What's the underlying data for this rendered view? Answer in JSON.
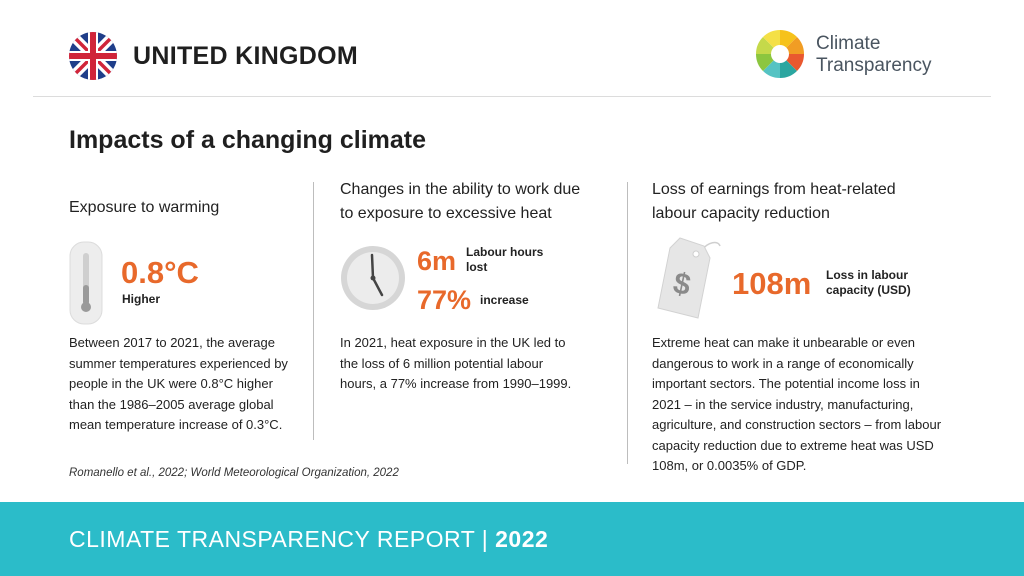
{
  "header": {
    "country": "UNITED KINGDOM",
    "logo_line1": "Climate",
    "logo_line2": "Transparency"
  },
  "section_title": "Impacts of a changing climate",
  "columns": [
    {
      "title": "Exposure to warming",
      "icon": "thermometer-icon",
      "stat_value": "0.8°C",
      "stat_label": "Higher",
      "body": "Between 2017 to 2021, the average summer temperatures experienced by people in the UK were 0.8°C higher than the 1986–2005 average global mean temperature increase of 0.3°C."
    },
    {
      "title_line1": "Changes in the ability to work due",
      "title_line2": "to exposure to excessive heat",
      "icon": "clock-icon",
      "stat1_value": "6m",
      "stat1_label_line1": "Labour hours",
      "stat1_label_line2": "lost",
      "stat2_value": "77%",
      "stat2_label": "increase",
      "body": "In 2021, heat exposure in the UK led to the loss of 6 million potential labour hours, a 77% increase from 1990–1999."
    },
    {
      "title_line1": "Loss of earnings from heat-related",
      "title_line2": "labour capacity reduction",
      "icon": "price-tag-dollar-icon",
      "stat_value": "108m",
      "stat_label_line1": "Loss in labour",
      "stat_label_line2": "capacity (USD)",
      "body": "Extreme heat can make it unbearable or even dangerous to work in a range of economically important sectors. The potential income loss in 2021 – in the service industry, manufacturing, agriculture, and construction sectors – from labour capacity reduction due to extreme heat was USD 108m, or 0.0035% of GDP."
    }
  ],
  "source": "Romanello et al., 2022; World Meteorological Organization, 2022",
  "footer": {
    "report": "CLIMATE TRANSPARENCY REPORT",
    "separator": " | ",
    "year": "2022"
  },
  "colors": {
    "accent_orange": "#e8692b",
    "footer_teal": "#2bbcc9",
    "text_dark": "#1f1f1f"
  }
}
